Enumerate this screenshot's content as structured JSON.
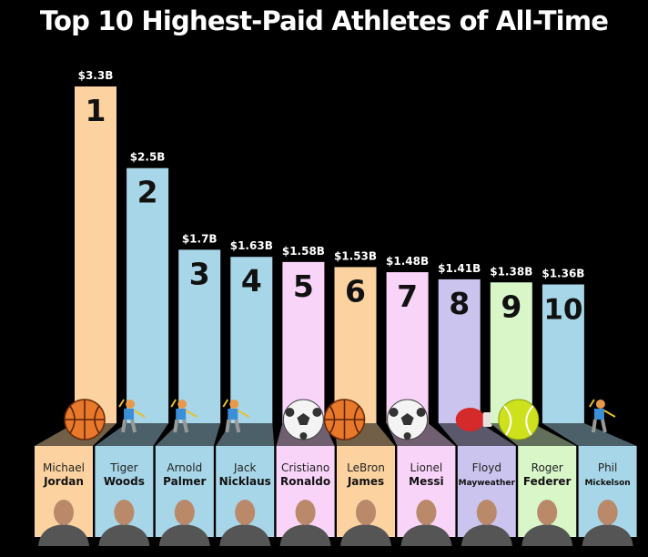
{
  "chart_data": {
    "type": "bar",
    "title": "Top 10 Highest-Paid Athletes of All-Time",
    "unit": "billion USD",
    "ylim": [
      0,
      3.3
    ],
    "grid": false,
    "categories": [
      "1",
      "2",
      "3",
      "4",
      "5",
      "6",
      "7",
      "8",
      "9",
      "10"
    ],
    "values": [
      3.3,
      2.5,
      1.7,
      1.63,
      1.58,
      1.53,
      1.48,
      1.41,
      1.38,
      1.36
    ],
    "value_labels": [
      "$3.3B",
      "$2.5B",
      "$1.7B",
      "$1.63B",
      "$1.58B",
      "$1.53B",
      "$1.48B",
      "$1.41B",
      "$1.38B",
      "$1.36B"
    ],
    "athletes": [
      {
        "first": "Michael",
        "last": "Jordan",
        "sport": "basketball",
        "icon": "basketball-icon",
        "color": "#fcd3a0"
      },
      {
        "first": "Tiger",
        "last": "Woods",
        "sport": "golf",
        "icon": "golfer-icon",
        "color": "#a7d6e8"
      },
      {
        "first": "Arnold",
        "last": "Palmer",
        "sport": "golf",
        "icon": "golfer-icon",
        "color": "#a7d6e8"
      },
      {
        "first": "Jack",
        "last": "Nicklaus",
        "sport": "golf",
        "icon": "golfer-icon",
        "color": "#a7d6e8"
      },
      {
        "first": "Cristiano",
        "last": "Ronaldo",
        "sport": "soccer",
        "icon": "soccer-ball-icon",
        "color": "#f9d4f9"
      },
      {
        "first": "LeBron",
        "last": "James",
        "sport": "basketball",
        "icon": "basketball-icon",
        "color": "#fcd3a0"
      },
      {
        "first": "Lionel",
        "last": "Messi",
        "sport": "soccer",
        "icon": "soccer-ball-icon",
        "color": "#f9d4f9"
      },
      {
        "first": "Floyd",
        "last": "Mayweather",
        "sport": "boxing",
        "icon": "boxing-glove-icon",
        "color": "#cbc4ee"
      },
      {
        "first": "Roger",
        "last": "Federer",
        "sport": "tennis",
        "icon": "tennis-ball-icon",
        "color": "#d9f6c9"
      },
      {
        "first": "Phil",
        "last": "Mickelson",
        "sport": "golf",
        "icon": "golfer-icon",
        "color": "#a7d6e8"
      }
    ]
  }
}
